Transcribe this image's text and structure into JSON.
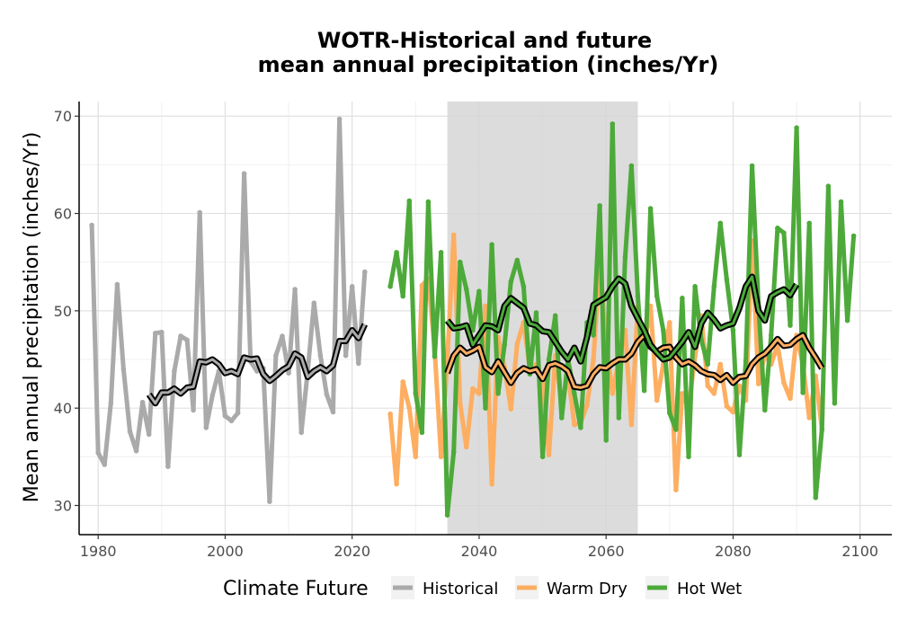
{
  "chart_data": {
    "type": "line",
    "title": [
      "WOTR-Historical and future",
      "mean annual precipitation (inches/Yr)"
    ],
    "ylabel": "Mean annual precipitation (inches/Yr)",
    "xlabel": "",
    "xlim": [
      1977,
      2105
    ],
    "ylim": [
      27,
      71.5
    ],
    "x_ticks": [
      1980,
      2000,
      2020,
      2040,
      2060,
      2080,
      2100
    ],
    "y_ticks": [
      30,
      40,
      50,
      60,
      70
    ],
    "grid": true,
    "shaded_period": [
      2035,
      2065
    ],
    "legend": {
      "title": "Climate Future",
      "position": "bottom",
      "entries": [
        {
          "label": "Historical",
          "color": "#aaaaaa"
        },
        {
          "label": "Warm Dry",
          "color": "#fdae61"
        },
        {
          "label": "Hot Wet",
          "color": "#4daa3a"
        }
      ]
    },
    "series": [
      {
        "name": "Historical",
        "color": "#aaaaaa",
        "x_start": 1979,
        "values": [
          58.8,
          35.4,
          34.2,
          40.5,
          52.7,
          44,
          37.6,
          35.6,
          40.6,
          37.3,
          47.7,
          47.8,
          34,
          43.8,
          47.4,
          47,
          39.8,
          60.1,
          38,
          41.3,
          43.8,
          39.2,
          38.7,
          39.5,
          64.1,
          44.8,
          43.8,
          44.1,
          30.4,
          45.4,
          47.4,
          43.6,
          52.2,
          37.5,
          43.8,
          50.8,
          45.4,
          41.4,
          39.6,
          69.7,
          45.4,
          52.5,
          44.6,
          54
        ]
      },
      {
        "name": "Historical rolling mean",
        "color": "#aaaaaa",
        "x_start": 1988,
        "values": [
          41.4,
          40.5,
          41.6,
          41.6,
          42,
          41.5,
          42.1,
          42.2,
          44.8,
          44.7,
          45,
          44.5,
          43.6,
          43.8,
          43.5,
          45.2,
          45,
          45.1,
          43.5,
          42.8,
          43.3,
          43.9,
          44.3,
          45.6,
          45.2,
          43.2,
          43.8,
          44.2,
          43.8,
          44.4,
          46.9,
          46.9,
          48,
          47.2,
          48.6
        ]
      },
      {
        "name": "Warm Dry",
        "color": "#fdae61",
        "x_start": 2026,
        "values": [
          39.4,
          32.2,
          42.7,
          40,
          35,
          52.6,
          53.3,
          46,
          35,
          45,
          57.8,
          40.5,
          36,
          42,
          41.5,
          50.5,
          32.2,
          47.3,
          44.2,
          39.9,
          46.6,
          48.8,
          44,
          44.5,
          43,
          35.2,
          45.4,
          40.3,
          43.5,
          38.3,
          38.5,
          40.3,
          45,
          55,
          46.8,
          41.5,
          45,
          48,
          38.3,
          50.5,
          46.3,
          50.5,
          40.8,
          44.5,
          48.8,
          31.6,
          41.5,
          40,
          45.3,
          49.5,
          42.3,
          41.5,
          44.5,
          40.2,
          39.6,
          42.3,
          40.8,
          57.2,
          42.5,
          45.5,
          44.5,
          46.5,
          42.6,
          41,
          47.5,
          44.5,
          39,
          43.3,
          37.8
        ]
      },
      {
        "name": "Warm Dry rolling mean",
        "color": "#fdae61",
        "x_start": 2035,
        "values": [
          43.6,
          45.4,
          46.2,
          45.6,
          45.9,
          46.3,
          44.2,
          43.7,
          44.8,
          43.7,
          42.6,
          43.6,
          44.1,
          43.8,
          44,
          43,
          44.4,
          44.6,
          44.3,
          43.8,
          42.2,
          42.1,
          42.3,
          43.5,
          44.2,
          44.1,
          44.6,
          45,
          45,
          45.6,
          46.8,
          47.5,
          46.3,
          45.8,
          46.2,
          46.3,
          45.2,
          44.5,
          44.8,
          44.4,
          43.8,
          43.5,
          43.4,
          42.9,
          43.4,
          42.6,
          43.2,
          43.3,
          44.5,
          45.2,
          45.6,
          46.3,
          47.1,
          46.4,
          46.5,
          47.1,
          47.5,
          46.2,
          45.2,
          44.1
        ]
      },
      {
        "name": "Hot Wet",
        "color": "#4daa3a",
        "x_start": 2026,
        "values": [
          52.5,
          56,
          51.5,
          61.3,
          41.5,
          37.5,
          61.2,
          45.3,
          56,
          29,
          35.5,
          55,
          52.2,
          48,
          52,
          40,
          56.8,
          41.5,
          46.5,
          53,
          55.2,
          52.5,
          43.5,
          49.8,
          35,
          45,
          49.5,
          39,
          45,
          41.5,
          38,
          48.8,
          47.5,
          60.8,
          36.7,
          69.2,
          39,
          55.5,
          64.9,
          51.5,
          41.8,
          60.5,
          51.5,
          48,
          39.5,
          37.8,
          51.3,
          35,
          52.5,
          47,
          44.5,
          52.5,
          59,
          53.2,
          48,
          35.2,
          44.8,
          64.9,
          50.5,
          39.8,
          47.5,
          58.5,
          58,
          48.5,
          68.8,
          41.6,
          59,
          30.8,
          37.8,
          62.8,
          40.5,
          61.2,
          49,
          57.7
        ]
      },
      {
        "name": "Hot Wet rolling mean",
        "color": "#4daa3a",
        "x_start": 2035,
        "values": [
          49,
          48.2,
          48.3,
          48.5,
          46.5,
          47.5,
          48.5,
          48.4,
          48,
          50.5,
          51.3,
          50.8,
          50.3,
          48.7,
          48.5,
          47.9,
          47.8,
          46.8,
          45.8,
          45,
          46.2,
          44.8,
          47.3,
          50.6,
          51,
          51.4,
          52.5,
          53.3,
          52.8,
          50.5,
          49.2,
          48,
          46.5,
          45.7,
          45,
          45.2,
          46,
          46.8,
          47.8,
          46.3,
          48.7,
          49.8,
          49.1,
          48.2,
          48.5,
          48.7,
          50.3,
          52.5,
          53.5,
          50,
          49,
          51.5,
          51.9,
          52.2,
          51.6,
          52.7
        ]
      }
    ]
  }
}
